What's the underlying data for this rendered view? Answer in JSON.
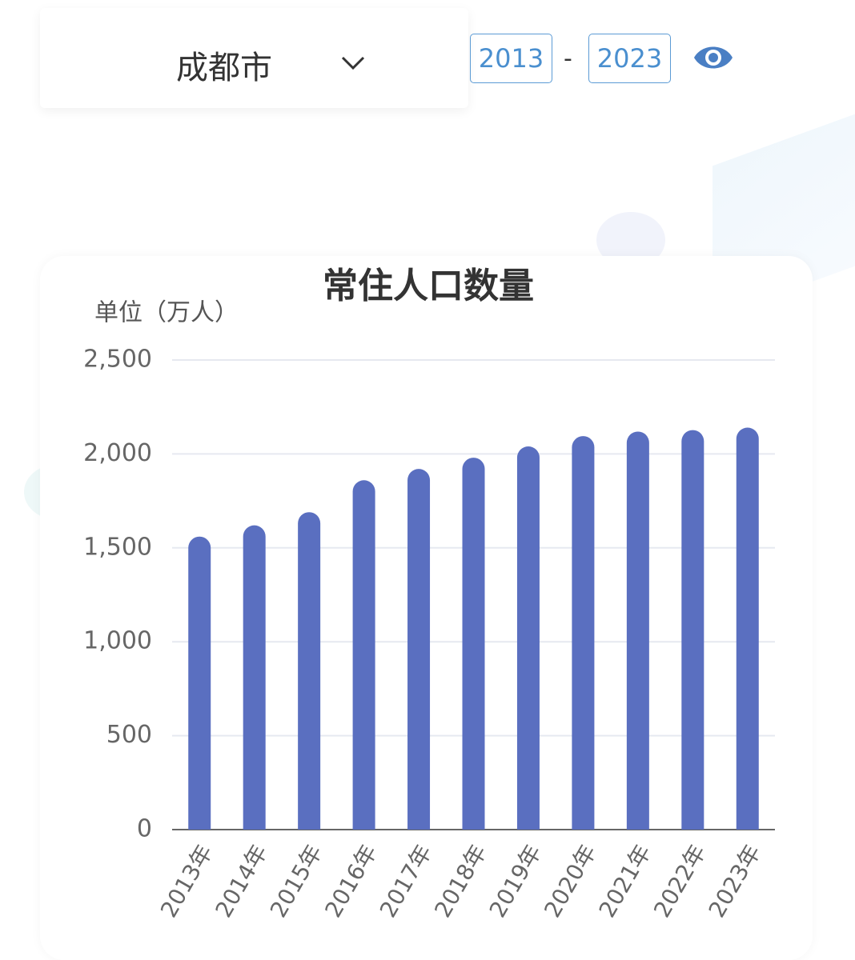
{
  "header": {
    "city": "成都市",
    "start_year": "2013",
    "separator": "-",
    "end_year": "2023"
  },
  "chart_data": {
    "type": "bar",
    "title": "常住人口数量",
    "y_label": "单位（万人）",
    "categories": [
      "2013年",
      "2014年",
      "2015年",
      "2016年",
      "2017年",
      "2018年",
      "2019年",
      "2020年",
      "2021年",
      "2022年",
      "2023年"
    ],
    "values": [
      1560,
      1620,
      1690,
      1860,
      1920,
      1980,
      2040,
      2095,
      2119,
      2127,
      2140
    ],
    "color": "#5a6fc0",
    "ylim": [
      0,
      2500
    ],
    "yticks": [
      0,
      500,
      {
        "value": 1000,
        "label": "1,000"
      },
      {
        "value": 1500,
        "label": "1,500"
      },
      {
        "value": 2000,
        "label": "2,000"
      },
      {
        "value": 2500,
        "label": "2,500"
      }
    ],
    "grid": true
  }
}
